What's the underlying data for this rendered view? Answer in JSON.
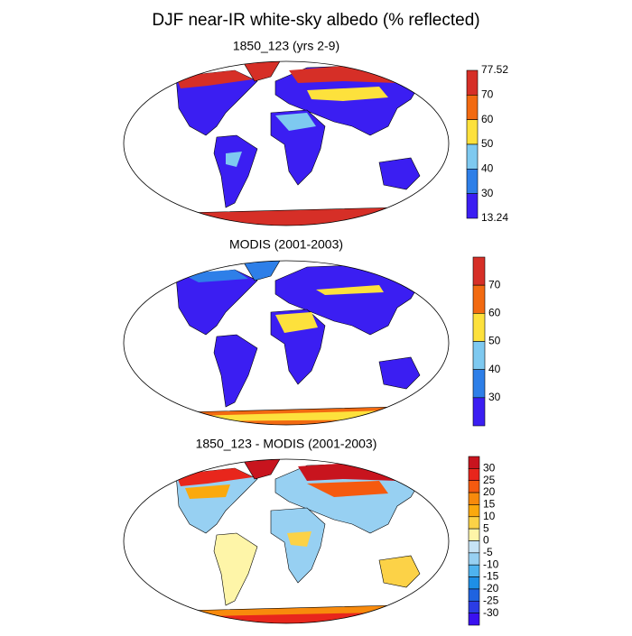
{
  "title": "DJF near-IR white-sky albedo (% reflected)",
  "panels": [
    {
      "title": "1850_123 (yrs 2-9)",
      "colorbar": {
        "colors": [
          "#d62f27",
          "#f26a11",
          "#fde13c",
          "#7ec9f0",
          "#2e7fe8",
          "#3b1ef2"
        ],
        "labels": [
          "77.52",
          "70",
          "60",
          "50",
          "40",
          "30",
          "13.24"
        ]
      }
    },
    {
      "title": "MODIS (2001-2003)",
      "colorbar": {
        "colors": [
          "#d62f27",
          "#f26a11",
          "#fde13c",
          "#7ec9f0",
          "#2e7fe8",
          "#3b1ef2"
        ],
        "labels": [
          "70",
          "60",
          "50",
          "40",
          "30"
        ]
      }
    },
    {
      "title": "1850_123 - MODIS (2001-2003)",
      "colorbar": {
        "colors": [
          "#c8141e",
          "#e8261c",
          "#f55a0f",
          "#f88a0c",
          "#fba90d",
          "#fcd247",
          "#fef5a8",
          "#c6e3f5",
          "#97d0f2",
          "#4eb3ef",
          "#1e8fe6",
          "#1f63e0",
          "#2b3ce5",
          "#3a10f0"
        ],
        "labels": [
          "30",
          "25",
          "20",
          "15",
          "10",
          "5",
          "0",
          "-5",
          "-10",
          "-15",
          "-20",
          "-25",
          "-30"
        ]
      }
    }
  ]
}
